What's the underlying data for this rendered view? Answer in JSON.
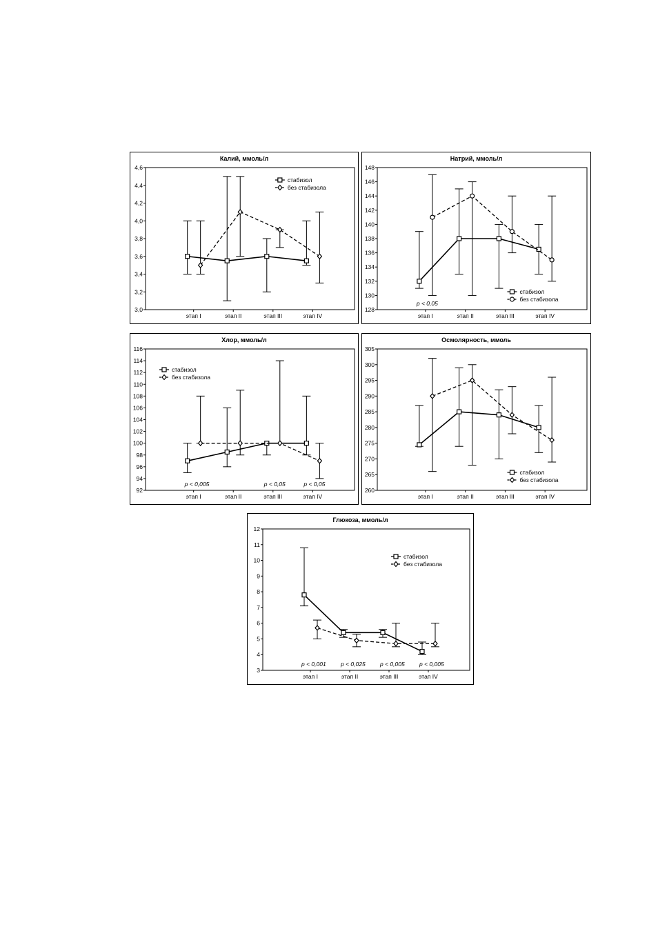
{
  "chart_data": [
    {
      "type": "line",
      "title": "Калий, ммоль/л",
      "categories": [
        "этап I",
        "этап II",
        "этап III",
        "этап IV"
      ],
      "ylim": [
        3.0,
        4.6
      ],
      "yticks": [
        "3,0",
        "3,2",
        "3,4",
        "3,6",
        "3,8",
        "4,0",
        "4,2",
        "4,4",
        "4,6"
      ],
      "ytick_values": [
        3.0,
        3.2,
        3.4,
        3.6,
        3.8,
        4.0,
        4.2,
        4.4,
        4.6
      ],
      "legend": "top-center",
      "series": [
        {
          "name": "стабизол",
          "marker": "square",
          "dash": false,
          "values": [
            3.6,
            3.55,
            3.6,
            3.55
          ],
          "err_low": [
            3.4,
            3.1,
            3.2,
            3.5
          ],
          "err_high": [
            4.0,
            4.5,
            3.8,
            4.0
          ]
        },
        {
          "name": "без стабизола",
          "marker": "diamond",
          "dash": true,
          "values": [
            3.5,
            4.1,
            3.9,
            3.6
          ],
          "err_low": [
            3.4,
            3.6,
            3.7,
            3.3
          ],
          "err_high": [
            4.0,
            4.5,
            3.9,
            4.1
          ]
        }
      ],
      "annotations": []
    },
    {
      "type": "line",
      "title": "Натрий, ммоль/л",
      "categories": [
        "этап I",
        "этап II",
        "этап III",
        "этап IV"
      ],
      "ylim": [
        128,
        148
      ],
      "yticks": [
        "128",
        "130",
        "132",
        "134",
        "136",
        "138",
        "140",
        "142",
        "144",
        "146",
        "148"
      ],
      "ytick_values": [
        128,
        130,
        132,
        134,
        136,
        138,
        140,
        142,
        144,
        146,
        148
      ],
      "legend": "bottom-right",
      "series": [
        {
          "name": "стабизол",
          "marker": "square",
          "dash": false,
          "values": [
            132,
            138,
            138,
            136.5
          ],
          "err_low": [
            131,
            133,
            131,
            133
          ],
          "err_high": [
            139,
            145,
            140,
            140
          ]
        },
        {
          "name": "без стабизола",
          "marker": "circle",
          "dash": true,
          "values": [
            141,
            144,
            139,
            135
          ],
          "err_low": [
            130,
            130,
            136,
            132
          ],
          "err_high": [
            147,
            146,
            144,
            144
          ]
        }
      ],
      "annotations": [
        {
          "text": "p < 0,05",
          "stage": 0
        }
      ]
    },
    {
      "type": "line",
      "title": "Хлор, ммоль/л",
      "categories": [
        "этап I",
        "этап II",
        "этап III",
        "этап IV"
      ],
      "ylim": [
        92,
        116
      ],
      "yticks": [
        "92",
        "94",
        "96",
        "98",
        "100",
        "102",
        "104",
        "106",
        "108",
        "110",
        "112",
        "114",
        "116"
      ],
      "ytick_values": [
        92,
        94,
        96,
        98,
        100,
        102,
        104,
        106,
        108,
        110,
        112,
        114,
        116
      ],
      "legend": "top-left",
      "series": [
        {
          "name": "стабизол",
          "marker": "square",
          "dash": false,
          "values": [
            97,
            98.5,
            100,
            100
          ],
          "err_low": [
            95,
            96,
            98,
            98
          ],
          "err_high": [
            100,
            106,
            100,
            108
          ]
        },
        {
          "name": "без стабизола",
          "marker": "diamond",
          "dash": true,
          "values": [
            100,
            100,
            100,
            97
          ],
          "err_low": [
            100,
            98,
            100,
            94
          ],
          "err_high": [
            108,
            109,
            114,
            100
          ]
        }
      ],
      "annotations": [
        {
          "text": "p < 0,005",
          "stage": 0
        },
        {
          "text": "p < 0,05",
          "stage": 2
        },
        {
          "text": "p < 0,05",
          "stage": 3
        }
      ]
    },
    {
      "type": "line",
      "title": "Осмолярность, ммоль",
      "categories": [
        "этап I",
        "этап II",
        "этап III",
        "этап IV"
      ],
      "ylim": [
        260,
        305
      ],
      "yticks": [
        "260",
        "265",
        "270",
        "275",
        "280",
        "285",
        "290",
        "295",
        "300",
        "305"
      ],
      "ytick_values": [
        260,
        265,
        270,
        275,
        280,
        285,
        290,
        295,
        300,
        305
      ],
      "legend": "bottom-right",
      "series": [
        {
          "name": "стабизол",
          "marker": "square",
          "dash": false,
          "values": [
            274.5,
            285,
            284,
            280
          ],
          "err_low": [
            274,
            274,
            270,
            272
          ],
          "err_high": [
            287,
            299,
            292,
            287
          ]
        },
        {
          "name": "без стабизола",
          "marker": "diamond",
          "dash": true,
          "values": [
            290,
            295,
            284,
            276
          ],
          "err_low": [
            266,
            268,
            278,
            269
          ],
          "err_high": [
            302,
            300,
            293,
            296
          ]
        }
      ],
      "annotations": []
    },
    {
      "type": "line",
      "title": "Глюкоза, ммоль/л",
      "categories": [
        "этап I",
        "этап II",
        "этап III",
        "этап IV"
      ],
      "ylim": [
        3,
        12
      ],
      "yticks": [
        "3",
        "4",
        "5",
        "6",
        "7",
        "8",
        "9",
        "10",
        "11",
        "12"
      ],
      "ytick_values": [
        3,
        4,
        5,
        6,
        7,
        8,
        9,
        10,
        11,
        12
      ],
      "legend": "top-right",
      "series": [
        {
          "name": "стабизол",
          "marker": "square",
          "dash": false,
          "values": [
            7.8,
            5.4,
            5.4,
            4.2
          ],
          "err_low": [
            7.1,
            5.1,
            5.1,
            4.0
          ],
          "err_high": [
            10.8,
            5.6,
            5.6,
            4.8
          ]
        },
        {
          "name": "без стабизола",
          "marker": "diamond",
          "dash": true,
          "values": [
            5.7,
            4.9,
            4.7,
            4.7
          ],
          "err_low": [
            5.0,
            4.5,
            4.5,
            4.5
          ],
          "err_high": [
            6.2,
            5.3,
            6.0,
            6.0
          ]
        }
      ],
      "annotations": [
        {
          "text": "p < 0,001",
          "stage": 0
        },
        {
          "text": "p < 0,025",
          "stage": 1
        },
        {
          "text": "p < 0,005",
          "stage": 2
        },
        {
          "text": "p < 0,005",
          "stage": 3
        }
      ]
    }
  ]
}
